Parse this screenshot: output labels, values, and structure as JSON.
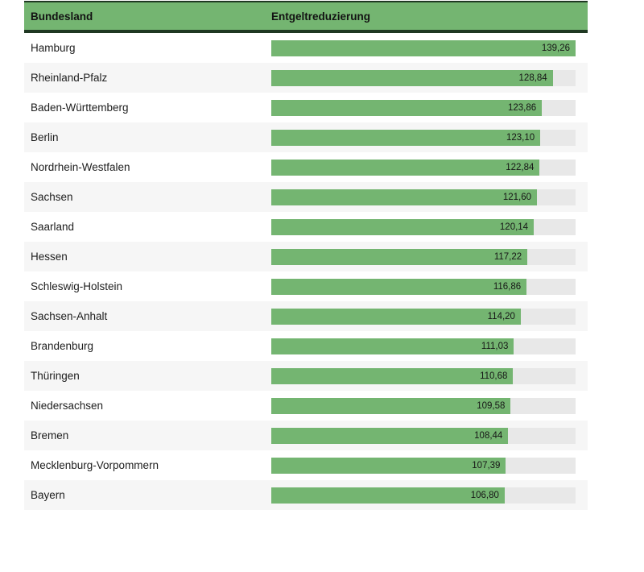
{
  "table": {
    "columns": [
      "Bundesland",
      "Entgeltreduzierung"
    ]
  },
  "chart_data": {
    "type": "bar",
    "orientation": "horizontal",
    "title": "",
    "xlabel": "Entgeltreduzierung",
    "ylabel": "Bundesland",
    "xlim": [
      0,
      139.26
    ],
    "grid": false,
    "legend": "none",
    "categories": [
      "Hamburg",
      "Rheinland-Pfalz",
      "Baden-Württemberg",
      "Berlin",
      "Nordrhein-Westfalen",
      "Sachsen",
      "Saarland",
      "Hessen",
      "Schleswig-Holstein",
      "Sachsen-Anhalt",
      "Brandenburg",
      "Thüringen",
      "Niedersachsen",
      "Bremen",
      "Mecklenburg-Vorpommern",
      "Bayern"
    ],
    "values": [
      139.26,
      128.84,
      123.86,
      123.1,
      122.84,
      121.6,
      120.14,
      117.22,
      116.86,
      114.2,
      111.03,
      110.68,
      109.58,
      108.44,
      107.39,
      106.8
    ],
    "value_labels": [
      "139,26",
      "128,84",
      "123,86",
      "123,10",
      "122,84",
      "121,60",
      "120,14",
      "117,22",
      "116,86",
      "114,20",
      "111,03",
      "110,68",
      "109,58",
      "108,44",
      "107,39",
      "106,80"
    ]
  },
  "colors": {
    "bar_fill": "#74b571",
    "header_bg": "#74b571",
    "header_border": "#1f3822",
    "track": "#e8e8e8",
    "row_alt": "#f6f6f6",
    "text": "#1d1d1d"
  }
}
